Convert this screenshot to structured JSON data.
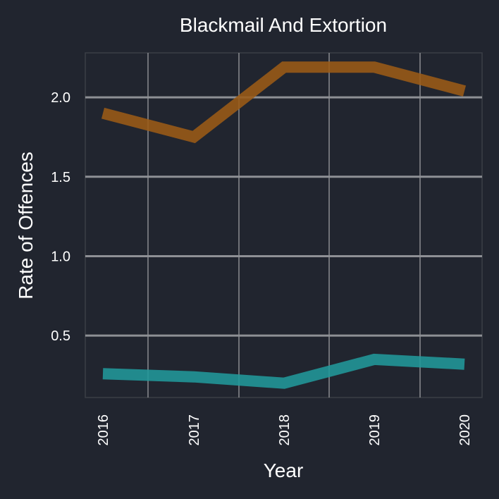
{
  "chart_data": {
    "type": "line",
    "title": "Blackmail And Extortion",
    "xlabel": "Year",
    "ylabel": "Rate of Offences",
    "categories": [
      "2016",
      "2017",
      "2018",
      "2019",
      "2020"
    ],
    "yticks": [
      "0.5",
      "1.0",
      "1.5",
      "2.0"
    ],
    "ylim": [
      0.11,
      2.28
    ],
    "grid": true,
    "legend": "none",
    "background": "#21252f",
    "series": [
      {
        "values": [
          1.9,
          1.75,
          2.19,
          2.19,
          2.04
        ],
        "color": "#9b5b17"
      },
      {
        "values": [
          0.26,
          0.24,
          0.2,
          0.35,
          0.32
        ],
        "color": "#21999b"
      }
    ]
  }
}
